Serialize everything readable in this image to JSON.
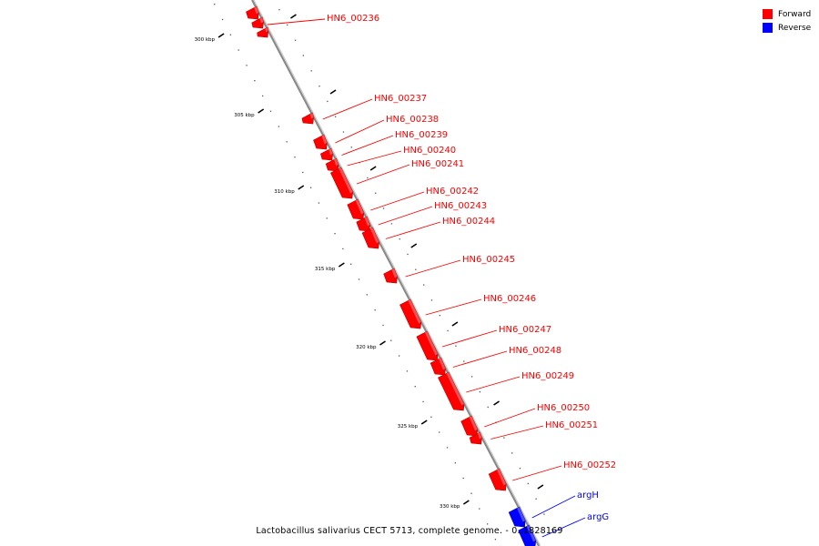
{
  "legend": {
    "forward_label": "Forward",
    "reverse_label": "Reverse",
    "forward_color": "#ff0000",
    "reverse_color": "#0000ff"
  },
  "caption": "Lactobacillus salivarius CECT 5713, complete genome. - 0..1828169",
  "backbone_color": "#888888",
  "ruler_labels": [
    "300 kbp",
    "305 kbp",
    "310 kbp",
    "315 kbp",
    "320 kbp",
    "325 kbp",
    "330 kbp"
  ],
  "genes": [
    {
      "label": "HN6_00236",
      "strand": "forward"
    },
    {
      "label": "HN6_00237",
      "strand": "forward"
    },
    {
      "label": "HN6_00238",
      "strand": "forward"
    },
    {
      "label": "HN6_00239",
      "strand": "forward"
    },
    {
      "label": "HN6_00240",
      "strand": "forward"
    },
    {
      "label": "HN6_00241",
      "strand": "forward"
    },
    {
      "label": "HN6_00242",
      "strand": "forward"
    },
    {
      "label": "HN6_00243",
      "strand": "forward"
    },
    {
      "label": "HN6_00244",
      "strand": "forward"
    },
    {
      "label": "HN6_00245",
      "strand": "forward"
    },
    {
      "label": "HN6_00246",
      "strand": "forward"
    },
    {
      "label": "HN6_00247",
      "strand": "forward"
    },
    {
      "label": "HN6_00248",
      "strand": "forward"
    },
    {
      "label": "HN6_00249",
      "strand": "forward"
    },
    {
      "label": "HN6_00250",
      "strand": "forward"
    },
    {
      "label": "HN6_00251",
      "strand": "forward"
    },
    {
      "label": "HN6_00252",
      "strand": "forward"
    },
    {
      "label": "argH",
      "strand": "reverse"
    },
    {
      "label": "argG",
      "strand": "reverse"
    }
  ]
}
